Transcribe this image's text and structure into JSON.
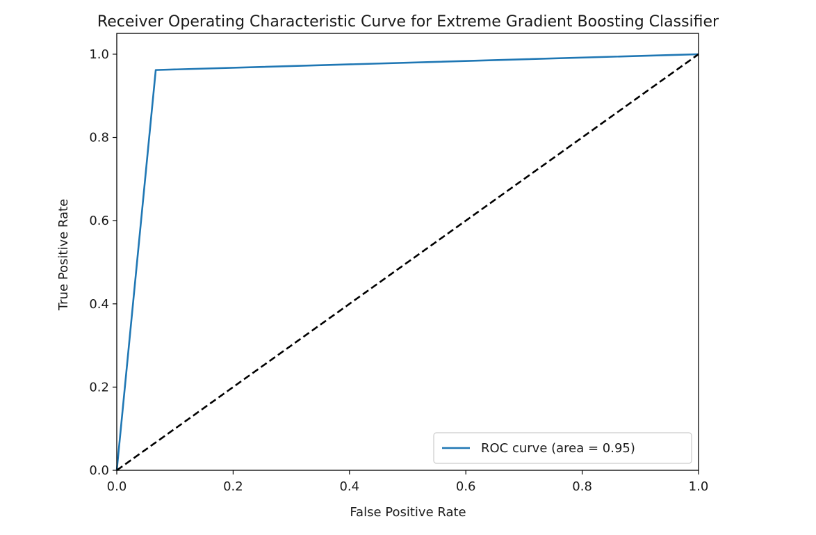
{
  "chart_data": {
    "type": "line",
    "title": "Receiver Operating Characteristic Curve for Extreme Gradient Boosting Classifier",
    "xlabel": "False Positive Rate",
    "ylabel": "True Positive Rate",
    "xlim": [
      0.0,
      1.0
    ],
    "ylim": [
      0.0,
      1.05
    ],
    "xticks": [
      "0.0",
      "0.2",
      "0.4",
      "0.6",
      "0.8",
      "1.0"
    ],
    "yticks": [
      "0.0",
      "0.2",
      "0.4",
      "0.6",
      "0.8",
      "1.0"
    ],
    "grid": false,
    "legend_position": "lower-right",
    "series": [
      {
        "name": "ROC curve (area = 0.95)",
        "color": "#1f77b4",
        "style": "solid",
        "x": [
          0.0,
          0.067,
          1.0
        ],
        "y": [
          0.0,
          0.962,
          1.0
        ]
      },
      {
        "color": "#000000",
        "style": "dashed",
        "x": [
          0.0,
          1.0
        ],
        "y": [
          0.0,
          1.0
        ]
      }
    ]
  }
}
